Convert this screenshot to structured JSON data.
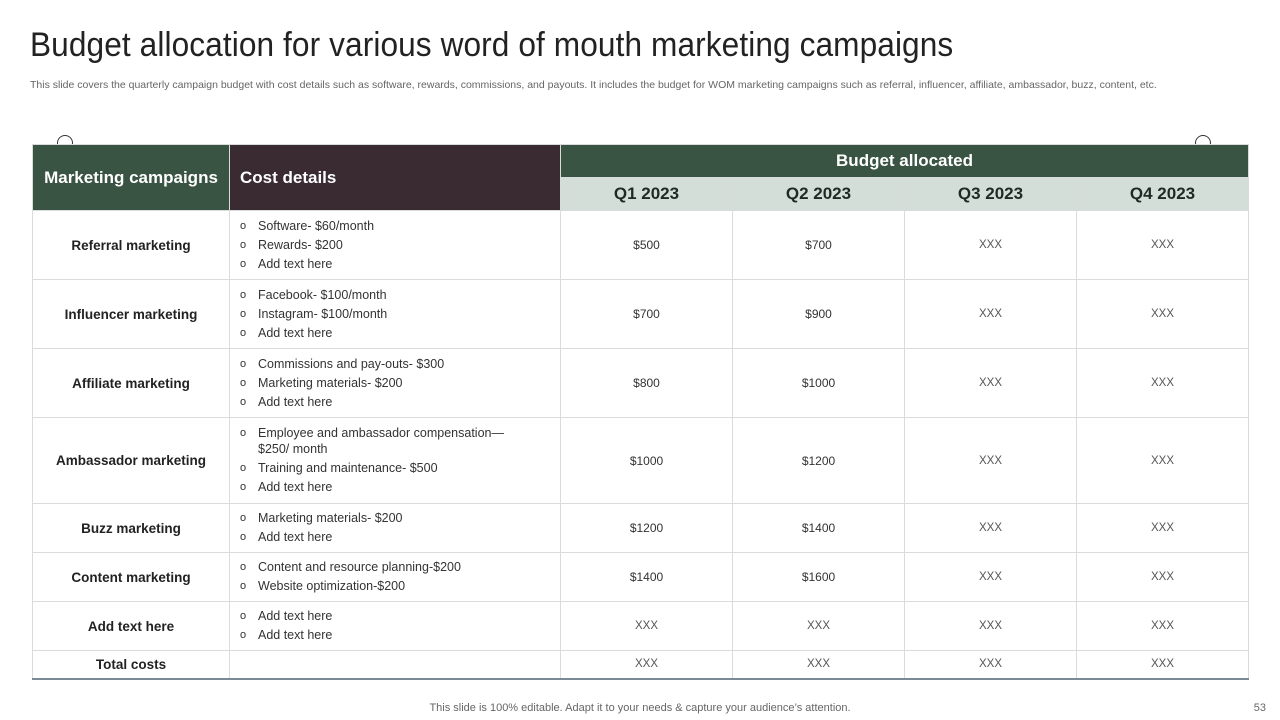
{
  "title": "Budget allocation for various word of mouth marketing campaigns",
  "subtitle": "This slide covers the quarterly campaign budget with cost details such as software, rewards, commissions, and payouts. It includes the budget for WOM  marketing campaigns such as referral, influencer, affiliate, ambassador, buzz, content, etc.",
  "table": {
    "col_campaigns": "Marketing campaigns",
    "col_cost": "Cost details",
    "col_budget": "Budget allocated",
    "quarters": [
      "Q1 2023",
      "Q2 2023",
      "Q3 2023",
      "Q4 2023"
    ],
    "rows": [
      {
        "name": "Referral marketing",
        "costs": [
          "Software- $60/month",
          "Rewards-  $200",
          "Add text here"
        ],
        "values": [
          "$500",
          "$700",
          "XXX",
          "XXX"
        ]
      },
      {
        "name": "Influencer marketing",
        "costs": [
          "Facebook- $100/month",
          "Instagram-  $100/month",
          "Add text here"
        ],
        "values": [
          "$700",
          "$900",
          "XXX",
          "XXX"
        ]
      },
      {
        "name": "Affiliate marketing",
        "costs": [
          "Commissions and pay-outs- $300",
          "Marketing materials- $200",
          "Add text here"
        ],
        "values": [
          "$800",
          "$1000",
          "XXX",
          "XXX"
        ]
      },
      {
        "name": "Ambassador marketing",
        "costs": [
          "Employee and ambassador compensation—  $250/ month",
          "Training  and maintenance-  $500",
          "Add text here"
        ],
        "values": [
          "$1000",
          "$1200",
          "XXX",
          "XXX"
        ]
      },
      {
        "name": "Buzz marketing",
        "costs": [
          "Marketing materials- $200",
          "Add text here"
        ],
        "values": [
          "$1200",
          "$1400",
          "XXX",
          "XXX"
        ]
      },
      {
        "name": "Content marketing",
        "costs": [
          "Content and resource planning-$200",
          "Website optimization-$200"
        ],
        "values": [
          "$1400",
          "$1600",
          "XXX",
          "XXX"
        ]
      },
      {
        "name": "Add text here",
        "costs": [
          "Add text here",
          "Add text here"
        ],
        "values": [
          "XXX",
          "XXX",
          "XXX",
          "XXX"
        ]
      }
    ],
    "total": {
      "name": "Total costs",
      "values": [
        "XXX",
        "XXX",
        "XXX",
        "XXX"
      ]
    }
  },
  "footer": "This slide is 100% editable. Adapt it to your needs & capture your audience’s attention.",
  "page_number": "53",
  "colors": {
    "header_green": "#3a5444",
    "header_dark": "#3a2a32",
    "quarter_bg": "#d3ded8"
  },
  "icons": {
    "pin_left": "pin-icon",
    "pin_right": "pin-icon"
  }
}
